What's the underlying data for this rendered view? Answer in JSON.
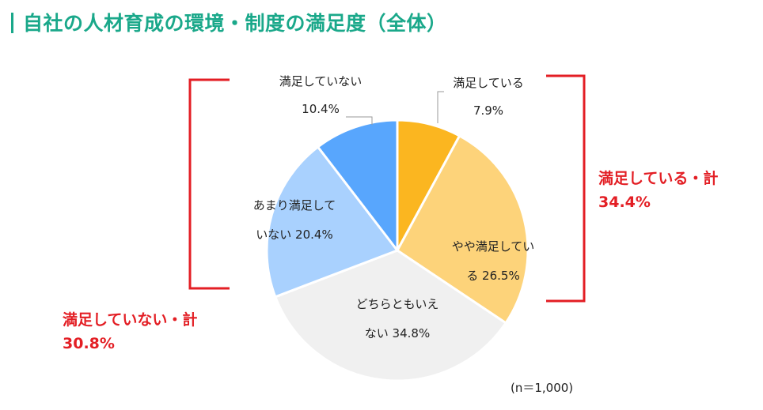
{
  "title": "自社の人材育成の環境・制度の満足度（全体）",
  "note": "(n＝1,000)",
  "colors": {
    "title": "#1aa88a",
    "bracket": "#e31e24"
  },
  "summary": {
    "satisfied_label": "満足している・計",
    "satisfied_value": "34.4%",
    "unsatisfied_label": "満足していない・計",
    "unsatisfied_value": "30.8%"
  },
  "chart_data": {
    "type": "pie",
    "title": "自社の人材育成の環境・制度の満足度（全体）",
    "n_label": "(n＝1,000)",
    "slices": [
      {
        "name": "満足している",
        "value": 7.9,
        "color": "#fbb620",
        "label_lines": [
          "満足している",
          "7.9%"
        ]
      },
      {
        "name": "やや満足している",
        "value": 26.5,
        "color": "#fdd37a",
        "label_lines": [
          "やや満足してい",
          "る 26.5%"
        ]
      },
      {
        "name": "どちらともいえない",
        "value": 34.8,
        "color": "#f0f0f0",
        "label_lines": [
          "どちらともいえ",
          "ない 34.8%"
        ]
      },
      {
        "name": "あまり満足していない",
        "value": 20.4,
        "color": "#a9d1fe",
        "label_lines": [
          "あまり満足して",
          "いない 20.4%"
        ]
      },
      {
        "name": "満足していない",
        "value": 10.4,
        "color": "#58a6fd",
        "label_lines": [
          "満足していない",
          "10.4%"
        ]
      }
    ]
  }
}
